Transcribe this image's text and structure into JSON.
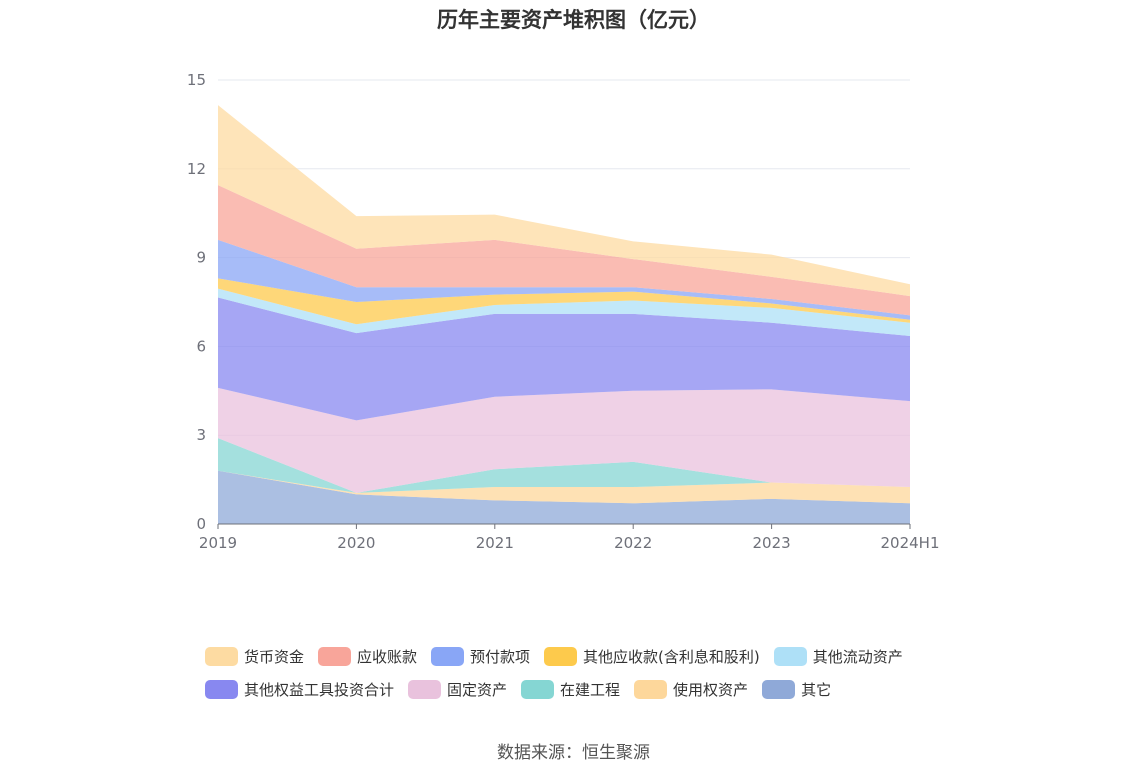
{
  "title": "历年主要资产堆积图（亿元）",
  "source": "数据来源：恒生聚源",
  "chart_data": {
    "type": "area",
    "stacked": true,
    "title": "历年主要资产堆积图（亿元）",
    "categories": [
      "2019",
      "2020",
      "2021",
      "2022",
      "2023",
      "2024H1"
    ],
    "ylim": [
      0,
      15
    ],
    "yticks": [
      0,
      3,
      6,
      9,
      12,
      15
    ],
    "grid": true,
    "legend_position": "bottom",
    "series": [
      {
        "name": "其它",
        "color": "#8fa9d8",
        "values": [
          1.8,
          1.0,
          0.8,
          0.7,
          0.85,
          0.7
        ]
      },
      {
        "name": "使用权资产",
        "color": "#fdd79b",
        "values": [
          0.0,
          0.05,
          0.45,
          0.55,
          0.55,
          0.55
        ]
      },
      {
        "name": "在建工程",
        "color": "#85d6d3",
        "values": [
          1.1,
          0.0,
          0.6,
          0.85,
          0.0,
          0.0
        ]
      },
      {
        "name": "固定资产",
        "color": "#e9c2dd",
        "values": [
          1.7,
          2.45,
          2.45,
          2.4,
          3.15,
          2.9
        ]
      },
      {
        "name": "其他权益工具投资合计",
        "color": "#8888f0",
        "values": [
          3.05,
          2.95,
          2.8,
          2.6,
          2.25,
          2.2
        ]
      },
      {
        "name": "其他流动资产",
        "color": "#aee0f7",
        "values": [
          0.3,
          0.3,
          0.3,
          0.45,
          0.5,
          0.45
        ]
      },
      {
        "name": "其他应收款(含利息和股利)",
        "color": "#fdca4c",
        "values": [
          0.35,
          0.75,
          0.35,
          0.3,
          0.15,
          0.1
        ]
      },
      {
        "name": "预付款项",
        "color": "#89a6f6",
        "values": [
          1.3,
          0.5,
          0.25,
          0.15,
          0.15,
          0.15
        ]
      },
      {
        "name": "应收账款",
        "color": "#f8a59a",
        "values": [
          1.85,
          1.3,
          1.6,
          0.95,
          0.75,
          0.65
        ]
      },
      {
        "name": "货币资金",
        "color": "#fddba2",
        "values": [
          2.7,
          1.1,
          0.85,
          0.6,
          0.75,
          0.4
        ]
      }
    ]
  },
  "legend": {
    "row1": [
      {
        "label": "货币资金",
        "color": "#fddba2"
      },
      {
        "label": "应收账款",
        "color": "#f8a59a"
      },
      {
        "label": "预付款项",
        "color": "#89a6f6"
      },
      {
        "label": "其他应收款(含利息和股利)",
        "color": "#fdca4c"
      },
      {
        "label": "其他流动资产",
        "color": "#aee0f7"
      }
    ],
    "row2": [
      {
        "label": "其他权益工具投资合计",
        "color": "#8888f0"
      },
      {
        "label": "固定资产",
        "color": "#e9c2dd"
      },
      {
        "label": "在建工程",
        "color": "#85d6d3"
      },
      {
        "label": "使用权资产",
        "color": "#fdd79b"
      },
      {
        "label": "其它",
        "color": "#8fa9d8"
      }
    ]
  }
}
